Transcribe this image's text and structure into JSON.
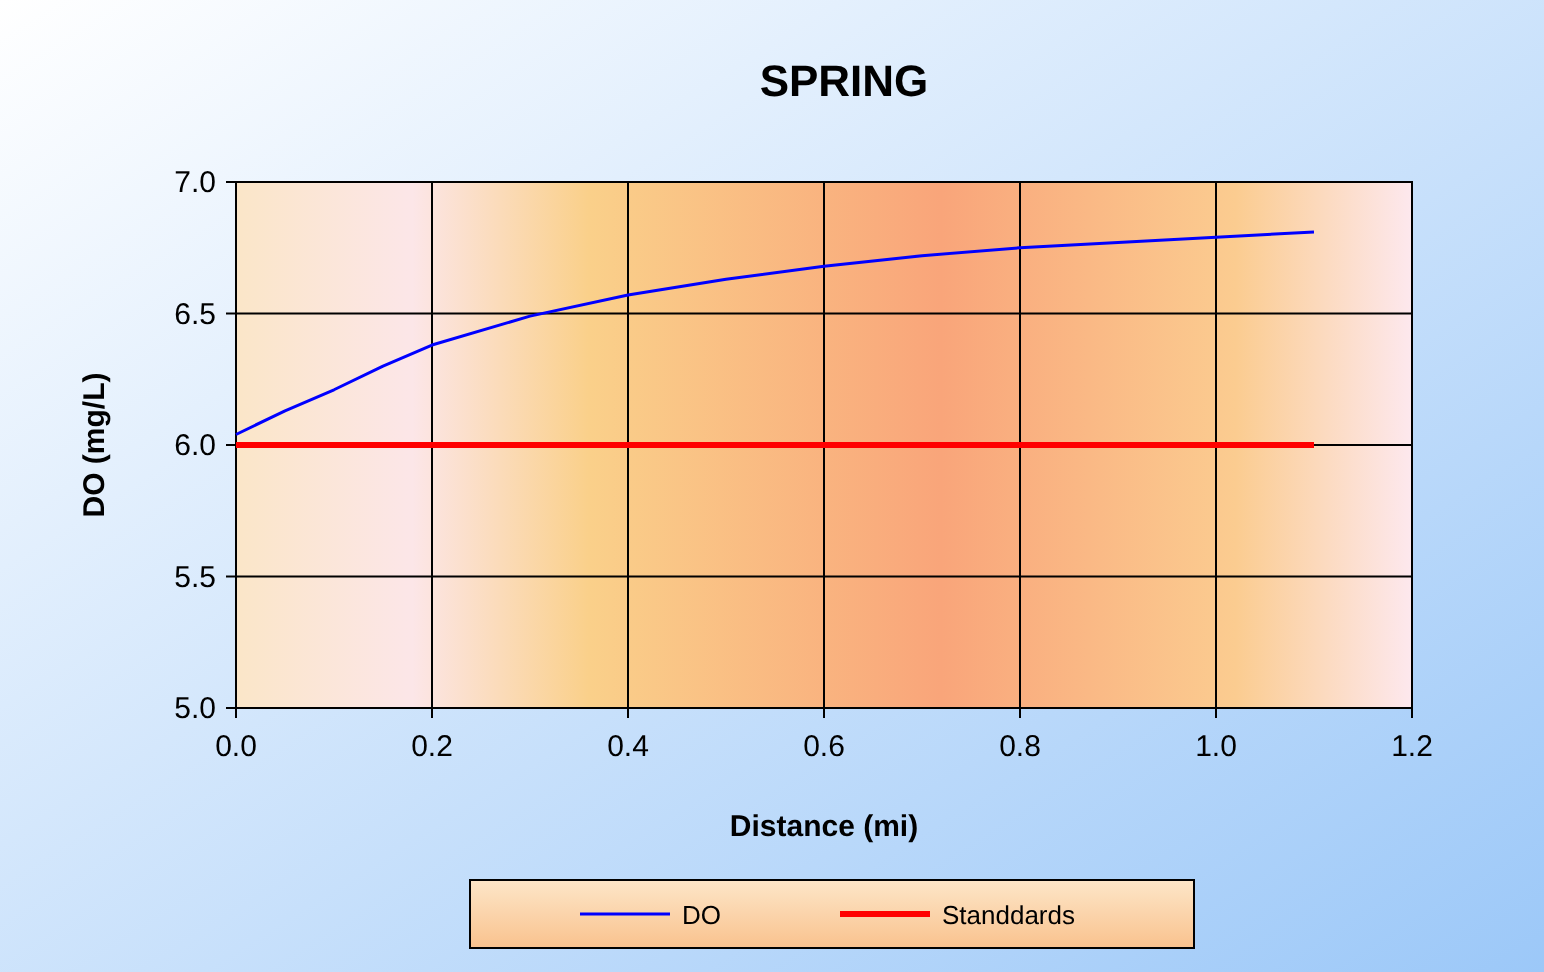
{
  "chart_data": {
    "type": "line",
    "title": "SPRING",
    "xlabel": "Distance (mi)",
    "ylabel": "DO (mg/L)",
    "xlim": [
      0,
      1.2
    ],
    "xticks": [
      {
        "value": 0,
        "label": "0.0"
      },
      {
        "value": 0.2,
        "label": "0.2"
      },
      {
        "value": 0.4,
        "label": "0.4"
      },
      {
        "value": 0.6,
        "label": "0.6"
      },
      {
        "value": 0.8,
        "label": "0.8"
      },
      {
        "value": 1,
        "label": "1.0"
      },
      {
        "value": 1.2,
        "label": "1.2"
      }
    ],
    "ylim": [
      5,
      7
    ],
    "yticks": [
      {
        "value": 5,
        "label": "5.0"
      },
      {
        "value": 5.5,
        "label": "5.5"
      },
      {
        "value": 6,
        "label": "6.0"
      },
      {
        "value": 6.5,
        "label": "6.5"
      },
      {
        "value": 7,
        "label": "7.0"
      }
    ],
    "grid": true,
    "legend": "bottom",
    "line_style": "solid",
    "series": [
      {
        "name": "DO",
        "color": "#0000ff",
        "x": [
          0,
          0.05,
          0.1,
          0.15,
          0.2,
          0.3,
          0.4,
          0.5,
          0.6,
          0.7,
          0.8,
          0.9,
          1.0,
          1.1
        ],
        "values": [
          6.04,
          6.13,
          6.21,
          6.3,
          6.38,
          6.49,
          6.57,
          6.63,
          6.68,
          6.72,
          6.75,
          6.77,
          6.79,
          6.81
        ]
      },
      {
        "name": "Standdards",
        "color": "#ff0000",
        "x": [
          0,
          1.1
        ],
        "values": [
          6,
          6
        ]
      }
    ]
  }
}
